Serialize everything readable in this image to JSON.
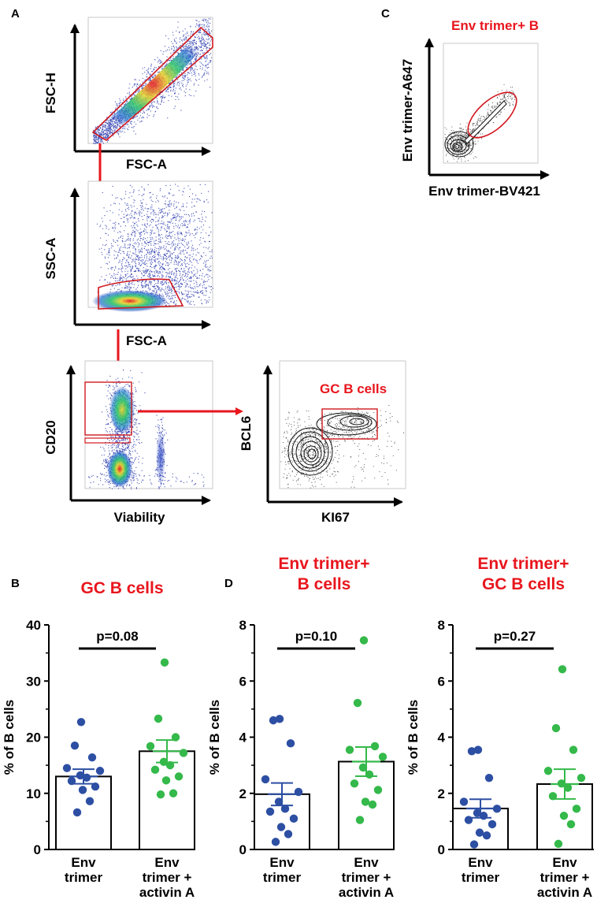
{
  "colors": {
    "accent": "#e8161d",
    "group1_dots": "#2d4fa3",
    "group2_dots": "#34b94a",
    "gate": "#d0191f",
    "density_low": "#2233aa",
    "density_mid": "#2bc46a",
    "density_high": "#e8d22a",
    "density_peak": "#e8161d"
  },
  "panels": {
    "A": "A",
    "B": "B",
    "C": "C",
    "D": "D"
  },
  "flow": {
    "plot1": {
      "name": "FSC-H vs FSC-A",
      "ylabel": "FSC-H",
      "xlabel": "FSC-A"
    },
    "plot2": {
      "name": "SSC-A vs FSC-A",
      "ylabel": "SSC-A",
      "xlabel": "FSC-A"
    },
    "plot3": {
      "name": "CD20 vs Viability",
      "ylabel": "CD20",
      "xlabel": "Viability"
    },
    "plot4": {
      "name": "BCL6 vs KI67",
      "ylabel": "BCL6",
      "xlabel": "KI67",
      "gate_label": "GC B cells"
    },
    "plot5": {
      "name": "Env trimer-A647 vs Env trimer-BV421",
      "ylabel": "Env trimer-A647",
      "xlabel": "Env trimer-BV421",
      "gate_label": "Env trimer+ B"
    }
  },
  "chart_data": [
    {
      "type": "bar",
      "panel": "B",
      "title": [
        "GC B cells"
      ],
      "ylabel": "% of B cells",
      "ylim": [
        0,
        40
      ],
      "yticks": [
        0,
        10,
        20,
        30,
        40
      ],
      "categories": [
        [
          "Env",
          "trimer"
        ],
        [
          "Env",
          "trimer +",
          "activin A"
        ]
      ],
      "means": [
        13.0,
        17.5
      ],
      "sem": [
        1.3,
        2.0
      ],
      "points": [
        [
          22.7,
          18.5,
          16.4,
          14.5,
          14.0,
          13.2,
          12.8,
          12.2,
          11.2,
          10.6,
          8.6,
          6.6
        ],
        [
          33.3,
          23.3,
          20.0,
          18.4,
          17.2,
          15.6,
          15.0,
          14.2,
          13.0,
          12.3,
          10.0,
          9.8
        ]
      ],
      "p_value": "p=0.08"
    },
    {
      "type": "bar",
      "panel": "D",
      "title": [
        "Env trimer+",
        "B cells"
      ],
      "ylabel": "% of B cells",
      "ylim": [
        0,
        8
      ],
      "yticks": [
        0,
        2,
        4,
        6,
        8
      ],
      "categories": [
        [
          "Env",
          "trimer"
        ],
        [
          "Env",
          "trimer +",
          "activin A"
        ]
      ],
      "means": [
        1.97,
        3.13
      ],
      "sem": [
        0.4,
        0.52
      ],
      "points": [
        [
          4.65,
          4.6,
          3.78,
          2.5,
          2.05,
          1.7,
          1.45,
          1.35,
          1.1,
          0.8,
          0.55,
          0.27
        ],
        [
          7.45,
          5.22,
          3.68,
          3.55,
          3.3,
          2.92,
          2.67,
          2.35,
          2.12,
          1.7,
          1.6,
          1.05
        ]
      ],
      "p_value": "p=0.10"
    },
    {
      "type": "bar",
      "panel": "D",
      "title": [
        "Env trimer+",
        "GC B cells"
      ],
      "ylabel": "% of B cells",
      "ylim": [
        0,
        8
      ],
      "yticks": [
        0,
        2,
        4,
        6,
        8
      ],
      "categories": [
        [
          "Env",
          "trimer"
        ],
        [
          "Env",
          "trimer +",
          "activin A"
        ]
      ],
      "means": [
        1.46,
        2.33
      ],
      "sem": [
        0.33,
        0.53
      ],
      "points": [
        [
          3.55,
          3.5,
          2.55,
          1.7,
          1.45,
          1.3,
          1.2,
          1.05,
          0.9,
          0.6,
          0.5,
          0.18
        ],
        [
          6.42,
          4.32,
          3.55,
          2.8,
          2.55,
          2.35,
          2.2,
          1.9,
          1.45,
          1.2,
          0.9,
          0.2
        ]
      ],
      "p_value": "p=0.27"
    }
  ]
}
